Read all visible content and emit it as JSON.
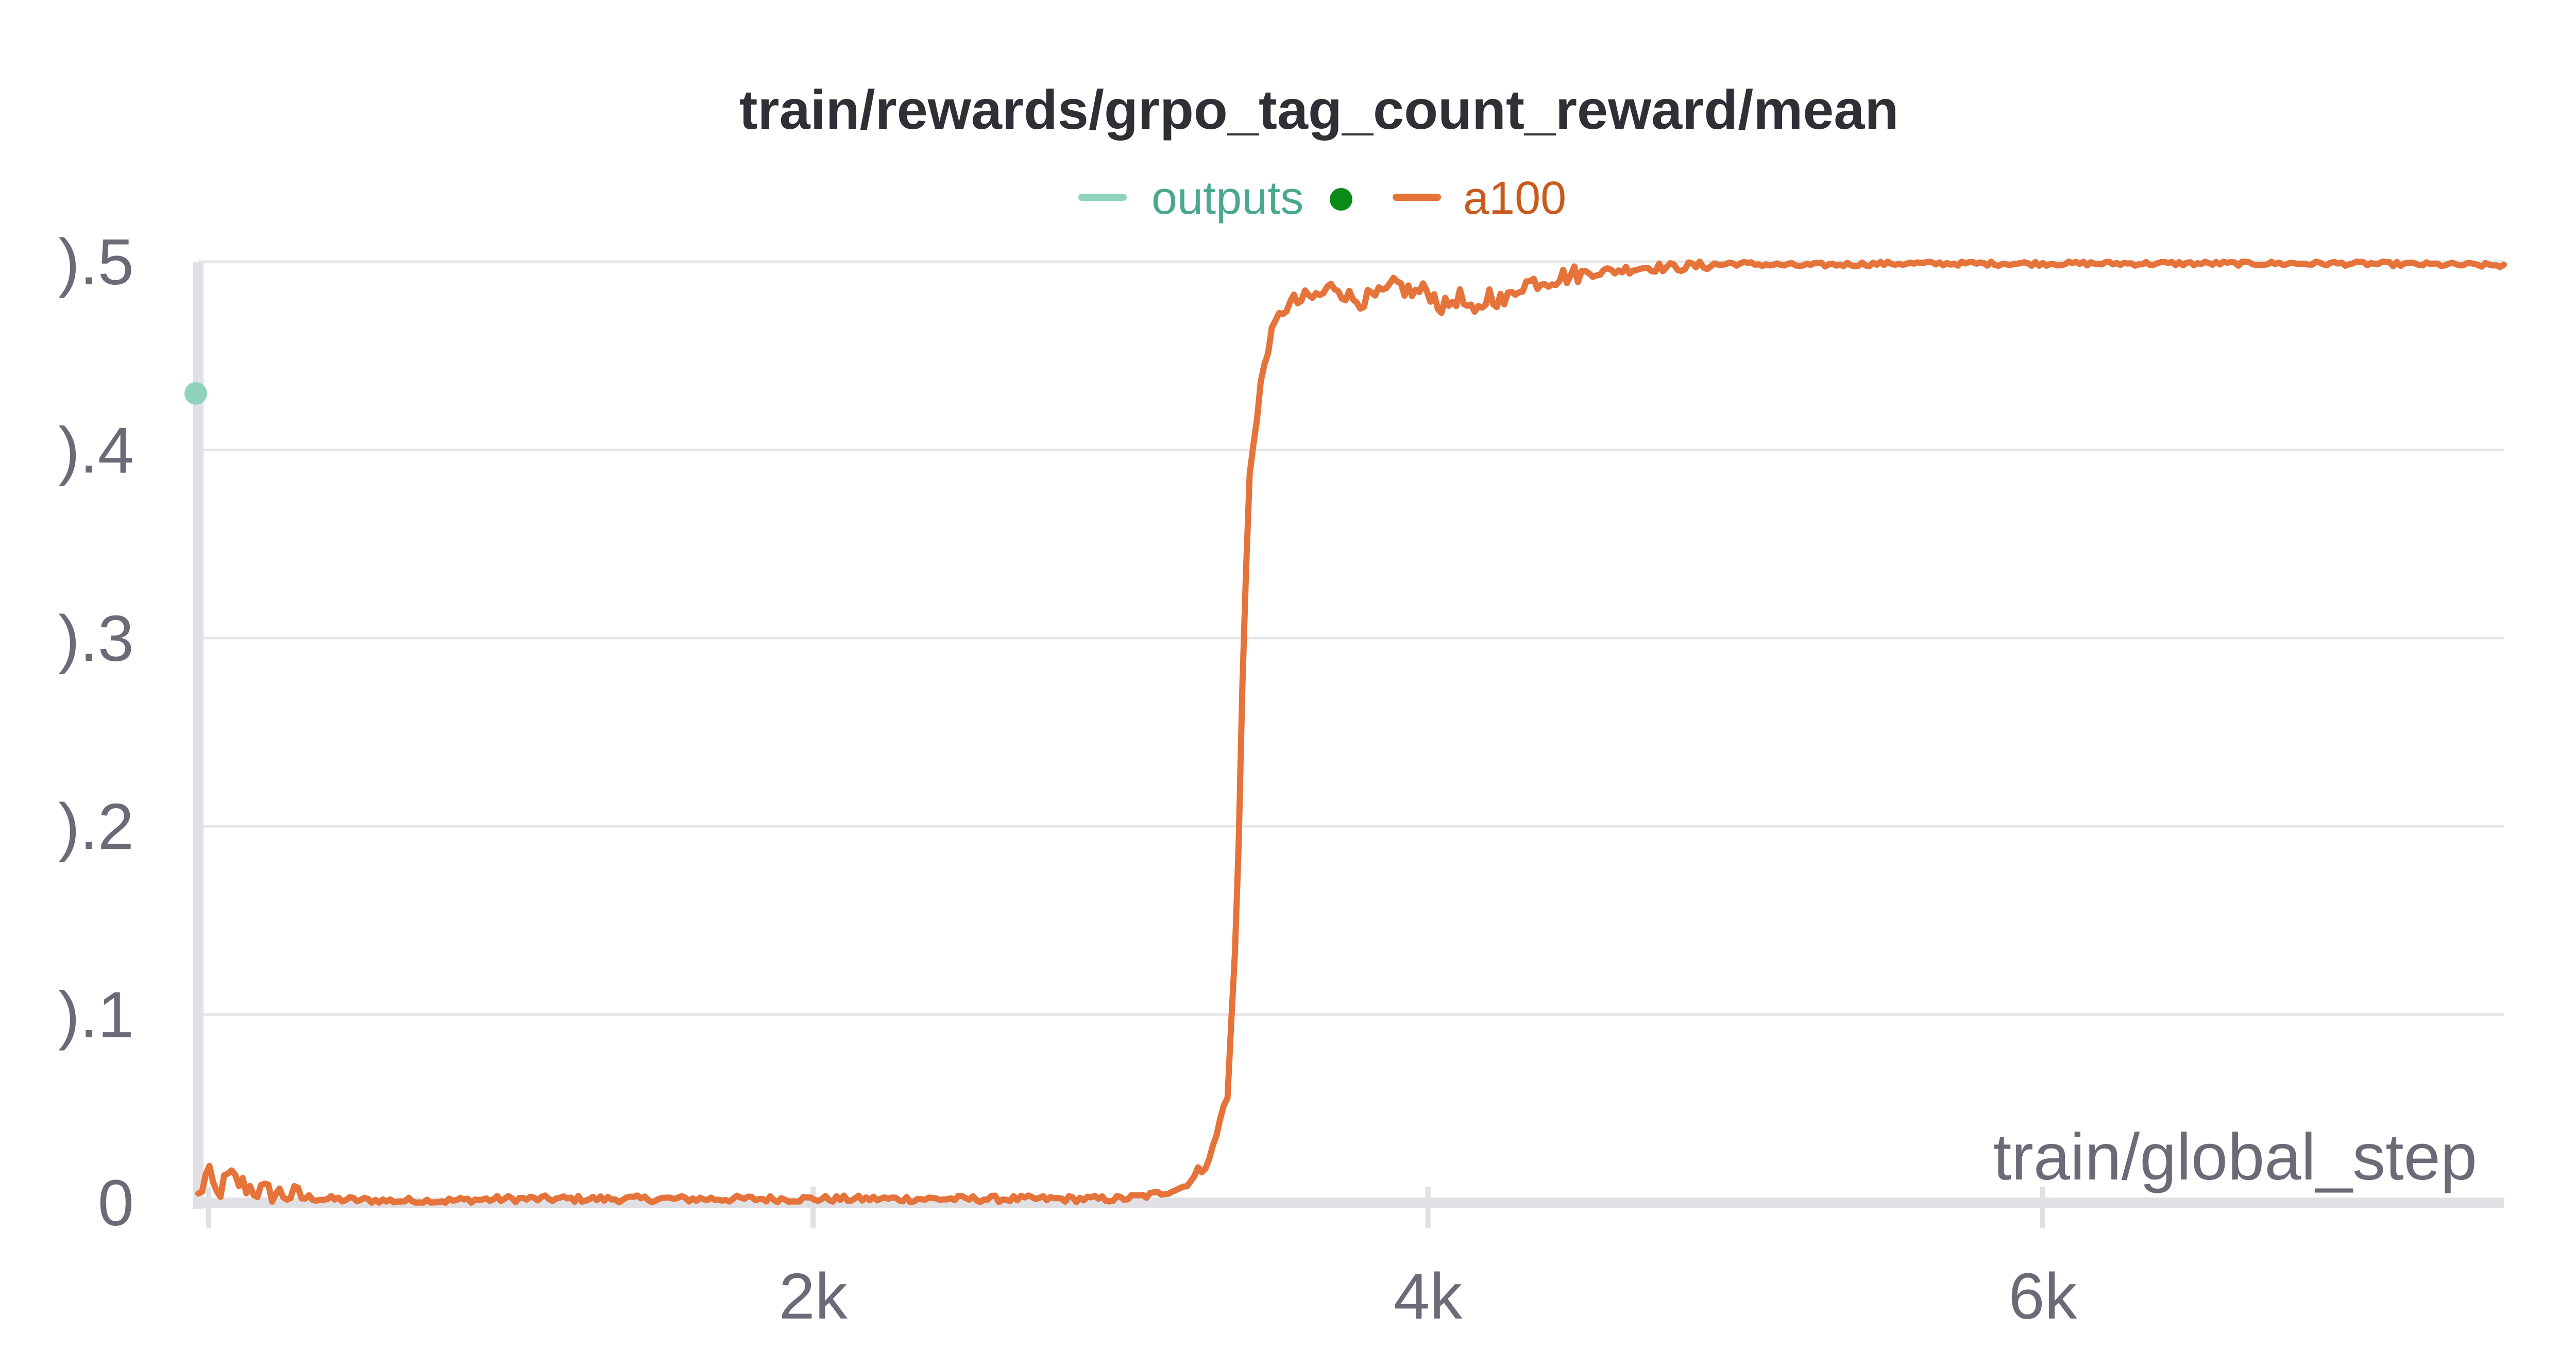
{
  "chart_data": {
    "type": "line",
    "title": "train/rewards/grpo_tag_count_reward/mean",
    "xlabel": "train/global_step",
    "ylabel": "",
    "xlim": [
      0,
      7500
    ],
    "ylim": [
      0,
      0.5
    ],
    "x_ticks": [
      {
        "value": 2000,
        "label": "2k"
      },
      {
        "value": 4000,
        "label": "4k"
      },
      {
        "value": 6000,
        "label": "6k"
      }
    ],
    "y_ticks": [
      {
        "value": 0,
        "label": "0"
      },
      {
        "value": 0.1,
        "label": ").1"
      },
      {
        "value": 0.2,
        "label": ").2"
      },
      {
        "value": 0.3,
        "label": ").3"
      },
      {
        "value": 0.4,
        "label": ").4"
      },
      {
        "value": 0.5,
        "label": ").5"
      }
    ],
    "grid": true,
    "legend_position": "top-center",
    "series": [
      {
        "name": "outputs",
        "color": "#8fd3bf",
        "style": "point",
        "status_dot_color": "#0a8a16",
        "x": [
          0
        ],
        "y": [
          0.43
        ]
      },
      {
        "name": "a100",
        "color": "#e5733a",
        "style": "line",
        "x": [
          0,
          30,
          60,
          100,
          150,
          200,
          300,
          400,
          600,
          800,
          1000,
          1200,
          1500,
          1800,
          2000,
          2200,
          2500,
          2800,
          3000,
          3100,
          3200,
          3250,
          3300,
          3350,
          3380,
          3400,
          3420,
          3440,
          3460,
          3480,
          3500,
          3530,
          3560,
          3600,
          3650,
          3700,
          3750,
          3800,
          3850,
          3900,
          3950,
          4000,
          4050,
          4100,
          4150,
          4200,
          4250,
          4300,
          4400,
          4500,
          4600,
          4700,
          4800,
          5000,
          5200,
          5500,
          6000,
          6500,
          7000,
          7500
        ],
        "y": [
          0.003,
          0.016,
          0.004,
          0.014,
          0.009,
          0.006,
          0.004,
          0.002,
          0.001,
          0.001,
          0.002,
          0.002,
          0.002,
          0.002,
          0.002,
          0.002,
          0.002,
          0.002,
          0.002,
          0.004,
          0.008,
          0.015,
          0.028,
          0.06,
          0.16,
          0.3,
          0.39,
          0.41,
          0.44,
          0.455,
          0.465,
          0.475,
          0.478,
          0.48,
          0.482,
          0.488,
          0.48,
          0.48,
          0.482,
          0.488,
          0.483,
          0.485,
          0.475,
          0.482,
          0.47,
          0.483,
          0.478,
          0.488,
          0.491,
          0.494,
          0.495,
          0.497,
          0.497,
          0.499,
          0.498,
          0.499,
          0.499,
          0.499,
          0.499,
          0.498
        ]
      }
    ]
  }
}
